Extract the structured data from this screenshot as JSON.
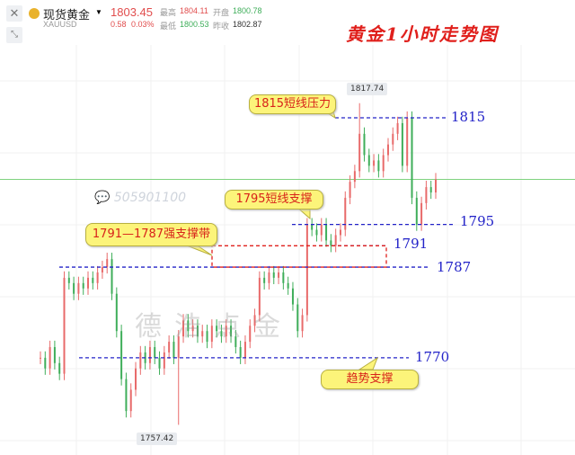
{
  "header": {
    "close_icon": "close-icon",
    "shrink_icon": "shrink-icon",
    "name": "现货黄金",
    "symbol": "XAUUSD",
    "price": "1803.45",
    "change": "0.58",
    "change_pct": "0.03%",
    "high_label": "最高",
    "high": "1804.11",
    "open_label": "开盘",
    "open": "1800.78",
    "low_label": "最低",
    "low": "1800.53",
    "prev_label": "昨收",
    "prev": "1802.87"
  },
  "watermark": {
    "wechat": "505901100",
    "brand": "德浩点金"
  },
  "colors": {
    "up": "#e86a6a",
    "down": "#3fae5a",
    "level_line": "#2323c8",
    "zone": "#e0201c",
    "current": "#7fd27f"
  },
  "chart_data": {
    "type": "candlestick",
    "title": "黄金1小时走势图",
    "grid": true,
    "closes": [
      1770,
      1768,
      1772,
      1769,
      1767,
      1785,
      1784,
      1782,
      1784,
      1783,
      1785,
      1784,
      1786,
      1787,
      1788.5,
      1782,
      1775,
      1766,
      1760,
      1764,
      1768,
      1771,
      1769,
      1772,
      1770,
      1768,
      1771,
      1773,
      1770,
      1774,
      1777,
      1775,
      1776,
      1774,
      1775,
      1773,
      1776,
      1775,
      1774,
      1776,
      1774,
      1772,
      1770,
      1773,
      1776,
      1778,
      1785,
      1784,
      1786,
      1785,
      1786,
      1784,
      1783,
      1780,
      1775,
      1778,
      1795,
      1794,
      1793,
      1795,
      1792,
      1791,
      1793,
      1794,
      1800,
      1803,
      1805,
      1812,
      1808,
      1806,
      1807,
      1805,
      1808,
      1810,
      1812,
      1814,
      1806,
      1815,
      1800,
      1795,
      1799,
      1802,
      1801,
      1803.45
    ],
    "max_label": "1817.74",
    "min_label": "1757.42",
    "current_price": 1803.45,
    "levels": [
      {
        "value": 1815,
        "label": "1815"
      },
      {
        "value": 1795,
        "label": "1795"
      },
      {
        "value": 1791,
        "label": "1791"
      },
      {
        "value": 1787,
        "label": "1787"
      },
      {
        "value": 1770,
        "label": "1770"
      }
    ],
    "zone": [
      1787,
      1791
    ],
    "annotations": [
      "1815短线压力",
      "1795短线支撑",
      "1791—1787强支撑带",
      "趋势支撑"
    ]
  }
}
